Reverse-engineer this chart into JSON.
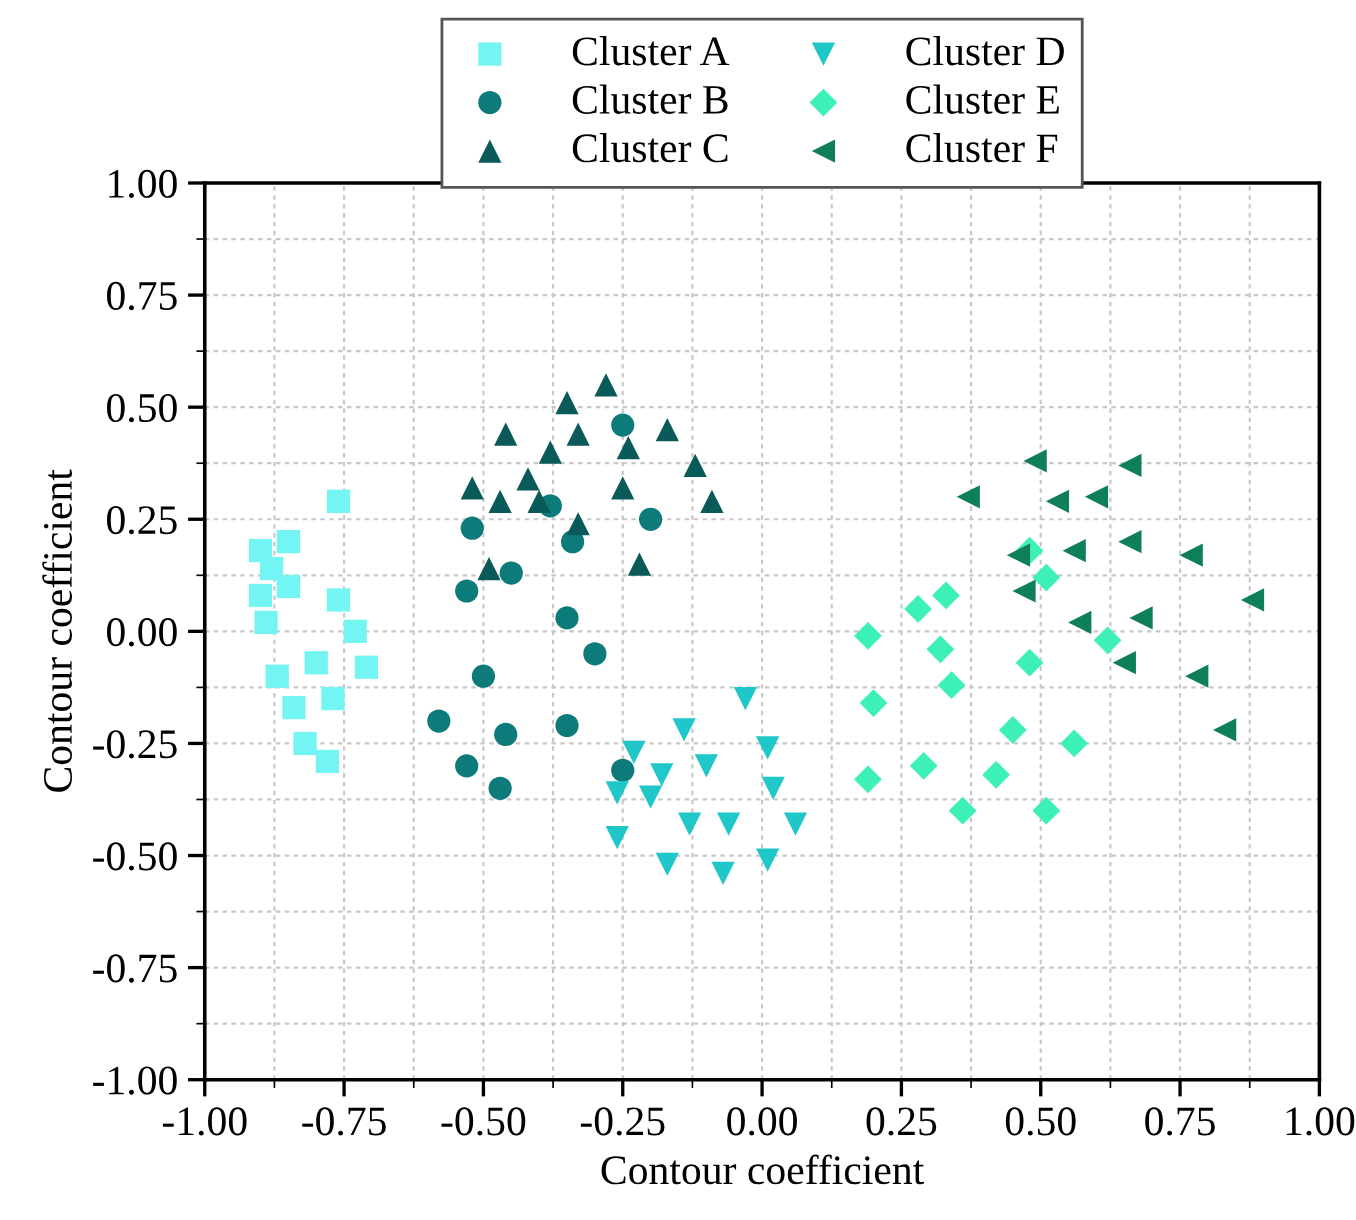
{
  "chart_data": {
    "type": "scatter",
    "xlabel": "Contour coefficient",
    "ylabel": "Contour coefficient",
    "xlim": [
      -1,
      1
    ],
    "ylim": [
      -1,
      1
    ],
    "xticks": [
      {
        "value": -1,
        "label": "-1.00"
      },
      {
        "value": -0.75,
        "label": "-0.75"
      },
      {
        "value": -0.5,
        "label": "-0.50"
      },
      {
        "value": -0.25,
        "label": "-0.25"
      },
      {
        "value": 0,
        "label": "0.00"
      },
      {
        "value": 0.25,
        "label": "0.25"
      },
      {
        "value": 0.5,
        "label": "0.50"
      },
      {
        "value": 0.75,
        "label": "0.75"
      },
      {
        "value": 1,
        "label": "1.00"
      }
    ],
    "yticks": [
      {
        "value": -1,
        "label": "-1.00"
      },
      {
        "value": -0.75,
        "label": "-0.75"
      },
      {
        "value": -0.5,
        "label": "-0.50"
      },
      {
        "value": -0.25,
        "label": "-0.25"
      },
      {
        "value": 0,
        "label": "0.00"
      },
      {
        "value": 0.25,
        "label": "0.25"
      },
      {
        "value": 0.5,
        "label": "0.50"
      },
      {
        "value": 0.75,
        "label": "0.75"
      },
      {
        "value": 1,
        "label": "1.00"
      }
    ],
    "grid": true,
    "legend": "top",
    "series": [
      {
        "name": "Cluster A",
        "color": "#72f5f3",
        "marker": "square",
        "x": [
          -0.9,
          -0.88,
          -0.85,
          -0.9,
          -0.85,
          -0.89,
          -0.76,
          -0.76,
          -0.73,
          -0.71,
          -0.8,
          -0.87,
          -0.84,
          -0.77,
          -0.82,
          -0.78
        ],
        "values": [
          0.18,
          0.14,
          0.2,
          0.08,
          0.1,
          0.02,
          0.29,
          0.07,
          0.0,
          -0.08,
          -0.07,
          -0.1,
          -0.17,
          -0.15,
          -0.25,
          -0.29
        ]
      },
      {
        "name": "Cluster B",
        "color": "#0e7b7b",
        "marker": "circle",
        "x": [
          -0.25,
          -0.52,
          -0.38,
          -0.2,
          -0.34,
          -0.53,
          -0.45,
          -0.35,
          -0.3,
          -0.5,
          -0.58,
          -0.46,
          -0.35,
          -0.53,
          -0.47,
          -0.25
        ],
        "values": [
          0.46,
          0.23,
          0.28,
          0.25,
          0.2,
          0.09,
          0.13,
          0.03,
          -0.05,
          -0.1,
          -0.2,
          -0.23,
          -0.21,
          -0.3,
          -0.35,
          -0.31
        ]
      },
      {
        "name": "Cluster C",
        "color": "#0b5a5a",
        "marker": "triangle",
        "x": [
          -0.28,
          -0.35,
          -0.46,
          -0.33,
          -0.38,
          -0.42,
          -0.24,
          -0.17,
          -0.52,
          -0.4,
          -0.25,
          -0.12,
          -0.47,
          -0.33,
          -0.09,
          -0.49,
          -0.22
        ],
        "values": [
          0.55,
          0.51,
          0.44,
          0.44,
          0.4,
          0.34,
          0.41,
          0.45,
          0.32,
          0.29,
          0.32,
          0.37,
          0.29,
          0.24,
          0.29,
          0.14,
          0.15
        ]
      },
      {
        "name": "Cluster D",
        "color": "#1fc7c9",
        "marker": "triangle_down",
        "x": [
          -0.03,
          -0.14,
          -0.23,
          0.01,
          -0.1,
          -0.18,
          -0.26,
          -0.2,
          0.02,
          -0.13,
          -0.06,
          0.06,
          -0.26,
          -0.17,
          -0.07,
          0.01
        ],
        "values": [
          -0.15,
          -0.22,
          -0.27,
          -0.26,
          -0.3,
          -0.32,
          -0.36,
          -0.37,
          -0.35,
          -0.43,
          -0.43,
          -0.43,
          -0.46,
          -0.52,
          -0.54,
          -0.51
        ]
      },
      {
        "name": "Cluster E",
        "color": "#3cf0b8",
        "marker": "diamond",
        "x": [
          0.48,
          0.28,
          0.33,
          0.19,
          0.51,
          0.32,
          0.48,
          0.34,
          0.62,
          0.2,
          0.45,
          0.56,
          0.19,
          0.29,
          0.42,
          0.36,
          0.51
        ],
        "values": [
          0.18,
          0.05,
          0.08,
          -0.01,
          0.12,
          -0.04,
          -0.07,
          -0.12,
          -0.02,
          -0.16,
          -0.22,
          -0.25,
          -0.33,
          -0.3,
          -0.32,
          -0.4,
          -0.4
        ]
      },
      {
        "name": "Cluster F",
        "color": "#0e7f56",
        "marker": "triangle_left",
        "x": [
          0.49,
          0.66,
          0.37,
          0.53,
          0.6,
          0.46,
          0.56,
          0.66,
          0.77,
          0.47,
          0.88,
          0.57,
          0.68,
          0.65,
          0.78,
          0.83
        ],
        "values": [
          0.38,
          0.37,
          0.3,
          0.29,
          0.3,
          0.17,
          0.18,
          0.2,
          0.17,
          0.09,
          0.07,
          0.02,
          0.03,
          -0.07,
          -0.1,
          -0.22
        ]
      }
    ]
  }
}
